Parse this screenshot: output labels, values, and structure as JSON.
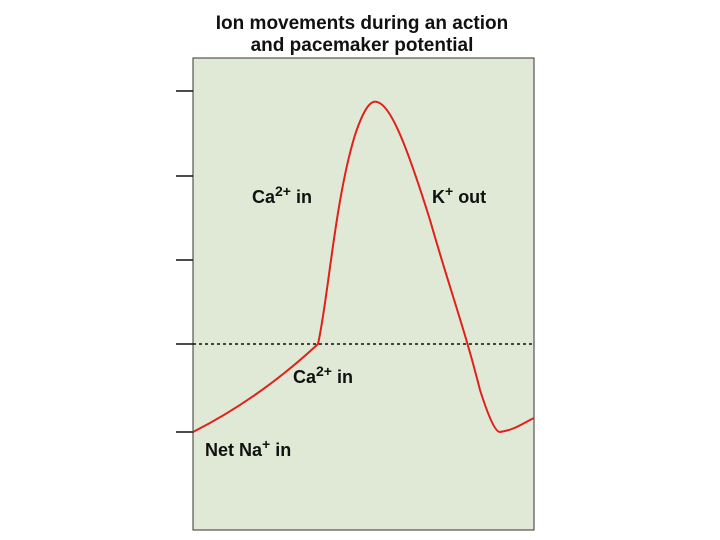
{
  "header": {
    "title": [
      "Ion movements during an action",
      "and pacemaker potential"
    ]
  },
  "labels": [
    {
      "base": "Ca",
      "sup": "2+",
      "after": "in"
    },
    {
      "base": "K",
      "sup": "+",
      "after": "out"
    },
    {
      "base": "Ca",
      "sup": "2+",
      "after": "in"
    },
    {
      "base": "Net Na",
      "sup": "+",
      "after": "in"
    }
  ]
}
